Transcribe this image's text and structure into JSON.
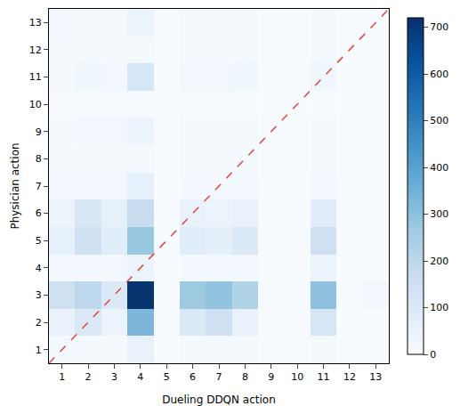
{
  "chart_data": {
    "type": "heatmap",
    "x_label": "Dueling DDQN action",
    "y_label": "Physician action",
    "x": [
      1,
      2,
      3,
      4,
      5,
      6,
      7,
      8,
      9,
      10,
      11,
      12,
      13
    ],
    "y": [
      1,
      2,
      3,
      4,
      5,
      6,
      7,
      8,
      9,
      10,
      11,
      12,
      13
    ],
    "cells": [
      [
        10,
        10,
        10,
        50,
        0,
        10,
        10,
        10,
        0,
        0,
        10,
        0,
        0
      ],
      [
        50,
        100,
        40,
        330,
        0,
        100,
        150,
        50,
        0,
        0,
        120,
        0,
        0
      ],
      [
        150,
        200,
        100,
        710,
        0,
        270,
        290,
        230,
        0,
        0,
        300,
        0,
        20
      ],
      [
        15,
        15,
        15,
        40,
        0,
        15,
        15,
        15,
        0,
        0,
        40,
        0,
        0
      ],
      [
        60,
        150,
        80,
        280,
        0,
        80,
        70,
        100,
        0,
        0,
        150,
        0,
        0
      ],
      [
        40,
        110,
        60,
        170,
        0,
        50,
        40,
        50,
        0,
        0,
        80,
        0,
        0
      ],
      [
        15,
        15,
        15,
        60,
        0,
        15,
        15,
        15,
        0,
        0,
        15,
        0,
        0
      ],
      [
        10,
        10,
        10,
        10,
        0,
        10,
        10,
        10,
        0,
        0,
        10,
        0,
        0
      ],
      [
        10,
        20,
        20,
        40,
        0,
        10,
        10,
        10,
        0,
        0,
        10,
        0,
        0
      ],
      [
        5,
        5,
        5,
        5,
        0,
        5,
        5,
        5,
        0,
        0,
        5,
        0,
        0
      ],
      [
        10,
        30,
        20,
        120,
        0,
        20,
        20,
        30,
        0,
        0,
        30,
        0,
        0
      ],
      [
        10,
        10,
        10,
        10,
        0,
        10,
        10,
        10,
        0,
        0,
        10,
        0,
        0
      ],
      [
        20,
        10,
        10,
        40,
        0,
        10,
        10,
        10,
        0,
        0,
        10,
        0,
        0
      ]
    ],
    "xlim": [
      0.5,
      13.5
    ],
    "ylim": [
      0.5,
      13.5
    ],
    "xticks": [
      1,
      2,
      3,
      4,
      5,
      6,
      7,
      8,
      9,
      10,
      11,
      12,
      13
    ],
    "yticks": [
      1,
      2,
      3,
      4,
      5,
      6,
      7,
      8,
      9,
      10,
      11,
      12,
      13
    ],
    "colorbar_range": [
      0,
      720
    ],
    "colorbar_ticks": [
      0,
      100,
      200,
      300,
      400,
      500,
      600,
      700
    ],
    "grid": false
  }
}
